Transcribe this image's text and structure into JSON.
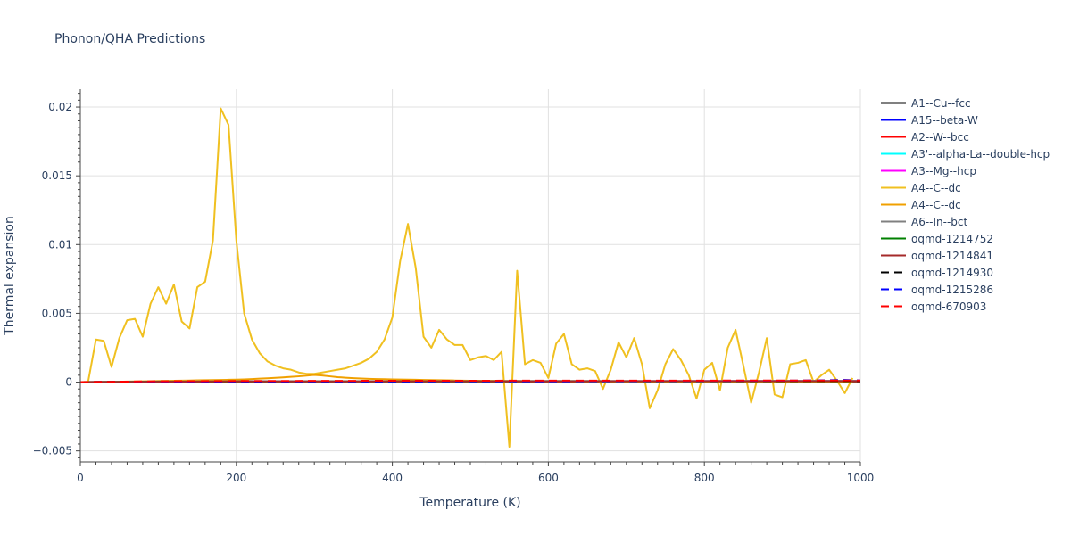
{
  "title": "Phonon/QHA Predictions",
  "chart_data": {
    "type": "line",
    "title": "Phonon/QHA Predictions",
    "xlabel": "Temperature (K)",
    "ylabel": "Thermal expansion",
    "xlim": [
      0,
      1000
    ],
    "ylim": [
      -0.0058,
      0.0213
    ],
    "x_ticks": [
      0,
      200,
      400,
      600,
      800,
      1000
    ],
    "x_tick_labels": [
      "0",
      "200",
      "400",
      "600",
      "800",
      "1000"
    ],
    "y_ticks": [
      -0.005,
      0,
      0.005,
      0.01,
      0.015,
      0.02
    ],
    "y_tick_labels": [
      "−0.005",
      "0",
      "0.005",
      "0.01",
      "0.015",
      "0.02"
    ],
    "grid": true,
    "legend_position": "right",
    "series": [
      {
        "name": "A1--Cu--fcc",
        "color": "#000000",
        "dash": "solid",
        "x": [
          0,
          100,
          200,
          300,
          400,
          500,
          600,
          700,
          800,
          900,
          1000
        ],
        "y": [
          0,
          3e-05,
          4e-05,
          5e-05,
          5e-05,
          6e-05,
          6e-05,
          6e-05,
          7e-05,
          7e-05,
          7e-05
        ]
      },
      {
        "name": "A15--beta-W",
        "color": "#0000ff",
        "dash": "solid",
        "x": [
          0,
          100,
          200,
          300,
          400,
          500,
          600,
          700,
          800,
          900,
          1000
        ],
        "y": [
          0,
          2e-05,
          3e-05,
          3e-05,
          4e-05,
          4e-05,
          4e-05,
          4e-05,
          5e-05,
          5e-05,
          5e-05
        ]
      },
      {
        "name": "A2--W--bcc",
        "color": "#ff0000",
        "dash": "solid",
        "x": [
          0,
          100,
          200,
          300,
          400,
          500,
          600,
          700,
          800,
          900,
          1000
        ],
        "y": [
          0,
          1e-05,
          2e-05,
          2e-05,
          2e-05,
          3e-05,
          3e-05,
          3e-05,
          3e-05,
          3e-05,
          3e-05
        ]
      },
      {
        "name": "A3'--alpha-La--double-hcp",
        "color": "#00ffff",
        "dash": "solid",
        "x": [
          0,
          100,
          200,
          300,
          400,
          500,
          600,
          700,
          800,
          900,
          1000
        ],
        "y": [
          0,
          3e-05,
          4e-05,
          5e-05,
          5e-05,
          5e-05,
          6e-05,
          6e-05,
          6e-05,
          6e-05,
          6e-05
        ]
      },
      {
        "name": "A3--Mg--hcp",
        "color": "#ff00ff",
        "dash": "solid",
        "x": [
          0,
          100,
          200,
          300,
          400,
          500,
          600,
          700,
          800,
          900,
          1000
        ],
        "y": [
          0,
          4e-05,
          5e-05,
          6e-05,
          6e-05,
          7e-05,
          7e-05,
          7e-05,
          8e-05,
          8e-05,
          8e-05
        ]
      },
      {
        "name": "A4--C--dc",
        "color": "#f0c020",
        "dash": "solid",
        "x": [
          0,
          10,
          20,
          30,
          40,
          50,
          60,
          70,
          80,
          90,
          100,
          110,
          120,
          130,
          140,
          150,
          160,
          170,
          180,
          190,
          200,
          210,
          220,
          230,
          240,
          250,
          260,
          270,
          280,
          290,
          300,
          310,
          320,
          330,
          340,
          350,
          360,
          370,
          380,
          390,
          400,
          410,
          420,
          430,
          440,
          450,
          460,
          470,
          480,
          490,
          500,
          510,
          520,
          530,
          540,
          550,
          560,
          570,
          580,
          590,
          600,
          610,
          620,
          630,
          640,
          650,
          660,
          670,
          680,
          690,
          700,
          710,
          720,
          730,
          740,
          750,
          760,
          770,
          780,
          790,
          800,
          810,
          820,
          830,
          840,
          850,
          860,
          870,
          880,
          890,
          900,
          910,
          920,
          930,
          940,
          950,
          960,
          970,
          980,
          990
        ],
        "y": [
          0,
          2e-05,
          0.0031,
          0.003,
          0.0011,
          0.0032,
          0.0045,
          0.0046,
          0.0033,
          0.0057,
          0.0069,
          0.0057,
          0.0071,
          0.0044,
          0.0039,
          0.0069,
          0.0073,
          0.0103,
          0.0199,
          0.0187,
          0.0103,
          0.005,
          0.0031,
          0.0021,
          0.0015,
          0.0012,
          0.001,
          0.0009,
          0.0007,
          0.0006,
          0.0006,
          0.0007,
          0.0008,
          0.0009,
          0.001,
          0.0012,
          0.0014,
          0.0017,
          0.0022,
          0.0031,
          0.0047,
          0.0088,
          0.0115,
          0.0083,
          0.0033,
          0.0025,
          0.0038,
          0.0031,
          0.0027,
          0.0027,
          0.0016,
          0.0018,
          0.0019,
          0.0016,
          0.0022,
          -0.0047,
          0.0081,
          0.0013,
          0.0016,
          0.0014,
          0.0003,
          0.0028,
          0.0035,
          0.0013,
          0.0009,
          0.001,
          0.0008,
          -0.0005,
          0.0009,
          0.0029,
          0.0018,
          0.0032,
          0.0013,
          -0.0019,
          -0.0006,
          0.0013,
          0.0024,
          0.0016,
          0.0005,
          -0.0012,
          0.0009,
          0.0014,
          -0.0006,
          0.0025,
          0.0038,
          0.0012,
          -0.0015,
          0.0007,
          0.0032,
          -0.0009,
          -0.0011,
          0.0013,
          0.0014,
          0.0016,
          0.0,
          0.0005,
          0.0009,
          0.0001,
          -0.0008,
          0.0003
        ]
      },
      {
        "name": "A4--C--dc",
        "color": "#f0a000",
        "dash": "solid",
        "x": [
          0,
          10,
          20,
          30,
          40,
          50,
          60,
          70,
          80,
          90,
          100,
          110,
          120,
          130,
          140,
          150,
          160,
          170,
          180,
          190,
          200,
          210,
          220,
          230,
          240,
          250,
          260,
          270,
          280,
          290,
          300,
          310,
          320,
          330,
          340,
          350,
          360,
          370,
          380,
          390,
          400,
          410,
          420,
          430,
          440,
          450,
          460,
          470,
          480,
          490,
          500,
          510,
          520,
          530,
          540,
          550,
          560,
          570,
          580,
          590,
          600,
          610,
          620,
          630,
          640,
          650,
          660,
          670,
          680,
          690,
          700,
          710,
          720,
          730,
          740,
          750,
          760,
          770,
          780,
          790,
          800,
          810,
          820,
          830,
          840,
          850,
          860,
          870,
          880,
          890,
          900,
          910,
          920,
          930,
          940,
          950,
          960,
          970,
          980,
          990
        ],
        "y": [
          0,
          1e-05,
          1e-05,
          2e-05,
          3e-05,
          3e-05,
          4e-05,
          5e-05,
          6e-05,
          7e-05,
          8e-05,
          9e-05,
          0.0001,
          0.00011,
          0.00012,
          0.00013,
          0.00014,
          0.00015,
          0.00016,
          0.00017,
          0.00018,
          0.0002,
          0.00022,
          0.00025,
          0.00028,
          0.00031,
          0.00034,
          0.00038,
          0.00042,
          0.00047,
          0.00052,
          0.00048,
          0.00042,
          0.00036,
          0.00032,
          0.00029,
          0.00026,
          0.00024,
          0.00022,
          0.00021,
          0.0002,
          0.00019,
          0.00018,
          0.00017,
          0.00016,
          0.00015,
          0.00014,
          0.00013,
          0.00012,
          0.00011,
          0.0001,
          0.0001,
          9e-05,
          9e-05,
          8e-05,
          8e-05,
          8e-05,
          7e-05,
          7e-05,
          7e-05,
          6e-05,
          6e-05,
          6e-05,
          6e-05,
          5e-05,
          5e-05,
          5e-05,
          5e-05,
          5e-05,
          4e-05,
          4e-05,
          4e-05,
          4e-05,
          4e-05,
          4e-05,
          3e-05,
          3e-05,
          3e-05,
          3e-05,
          3e-05,
          3e-05,
          3e-05,
          3e-05,
          2e-05,
          2e-05,
          2e-05,
          2e-05,
          2e-05,
          2e-05,
          2e-05,
          2e-05,
          2e-05,
          2e-05,
          2e-05,
          1e-05,
          1e-05,
          1e-05,
          1e-05,
          1e-05,
          1e-05
        ]
      },
      {
        "name": "A6--In--bct",
        "color": "#808080",
        "dash": "solid",
        "x": [
          0,
          100,
          200,
          300,
          400,
          500,
          600,
          700,
          800,
          900,
          1000
        ],
        "y": [
          0,
          4e-05,
          5e-05,
          6e-05,
          7e-05,
          7e-05,
          8e-05,
          8e-05,
          8e-05,
          9e-05,
          9e-05
        ]
      },
      {
        "name": "oqmd-1214752",
        "color": "#008000",
        "dash": "solid",
        "x": [
          0,
          100,
          200,
          300,
          400,
          500,
          600,
          700,
          800,
          900,
          1000
        ],
        "y": [
          0,
          3e-05,
          4e-05,
          5e-05,
          5e-05,
          5e-05,
          6e-05,
          6e-05,
          6e-05,
          6e-05,
          6e-05
        ]
      },
      {
        "name": "oqmd-1214841",
        "color": "#a52a2a",
        "dash": "solid",
        "x": [
          0,
          100,
          200,
          300,
          400,
          500,
          600,
          700,
          800,
          900,
          1000
        ],
        "y": [
          0,
          3e-05,
          5e-05,
          5e-05,
          6e-05,
          6e-05,
          6e-05,
          7e-05,
          7e-05,
          7e-05,
          7e-05
        ]
      },
      {
        "name": "oqmd-1214930",
        "color": "#000000",
        "dash": "dash",
        "x": [
          0,
          100,
          200,
          300,
          400,
          500,
          600,
          700,
          800,
          900,
          1000
        ],
        "y": [
          0,
          4e-05,
          5e-05,
          6e-05,
          6e-05,
          7e-05,
          7e-05,
          7e-05,
          8e-05,
          8e-05,
          8e-05
        ]
      },
      {
        "name": "oqmd-1215286",
        "color": "#0000ff",
        "dash": "dash",
        "x": [
          0,
          100,
          200,
          300,
          400,
          500,
          600,
          700,
          800,
          900,
          950,
          980,
          1000
        ],
        "y": [
          0,
          3e-05,
          4e-05,
          5e-05,
          5e-05,
          6e-05,
          6e-05,
          7e-05,
          8e-05,
          0.0001,
          0.00013,
          0.00016,
          0.00012
        ]
      },
      {
        "name": "oqmd-670903",
        "color": "#ff0000",
        "dash": "dash",
        "x": [
          0,
          100,
          200,
          300,
          400,
          500,
          600,
          700,
          800,
          900,
          1000
        ],
        "y": [
          0,
          6e-05,
          8e-05,
          9e-05,
          0.0001,
          0.0001,
          0.00011,
          0.00011,
          0.00011,
          0.00012,
          0.00012
        ]
      }
    ]
  }
}
